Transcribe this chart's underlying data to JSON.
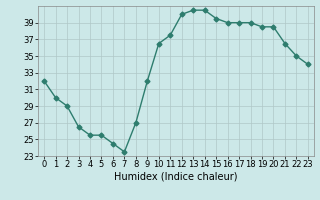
{
  "x": [
    0,
    1,
    2,
    3,
    4,
    5,
    6,
    7,
    8,
    9,
    10,
    11,
    12,
    13,
    14,
    15,
    16,
    17,
    18,
    19,
    20,
    21,
    22,
    23
  ],
  "y": [
    32,
    30,
    29,
    26.5,
    25.5,
    25.5,
    24.5,
    23.5,
    27,
    32,
    36.5,
    37.5,
    40,
    40.5,
    40.5,
    39.5,
    39,
    39,
    39,
    38.5,
    38.5,
    36.5,
    35,
    34
  ],
  "line_color": "#2e7d6e",
  "marker": "D",
  "markersize": 2.5,
  "linewidth": 1.0,
  "xlabel": "Humidex (Indice chaleur)",
  "xlabel_fontsize": 7,
  "bg_color": "#cce8e8",
  "grid_color": "#b0c8c8",
  "xlim": [
    -0.5,
    23.5
  ],
  "ylim": [
    23,
    41
  ],
  "yticks": [
    23,
    25,
    27,
    29,
    31,
    33,
    35,
    37,
    39
  ],
  "xticks": [
    0,
    1,
    2,
    3,
    4,
    5,
    6,
    7,
    8,
    9,
    10,
    11,
    12,
    13,
    14,
    15,
    16,
    17,
    18,
    19,
    20,
    21,
    22,
    23
  ],
  "tick_fontsize": 6
}
